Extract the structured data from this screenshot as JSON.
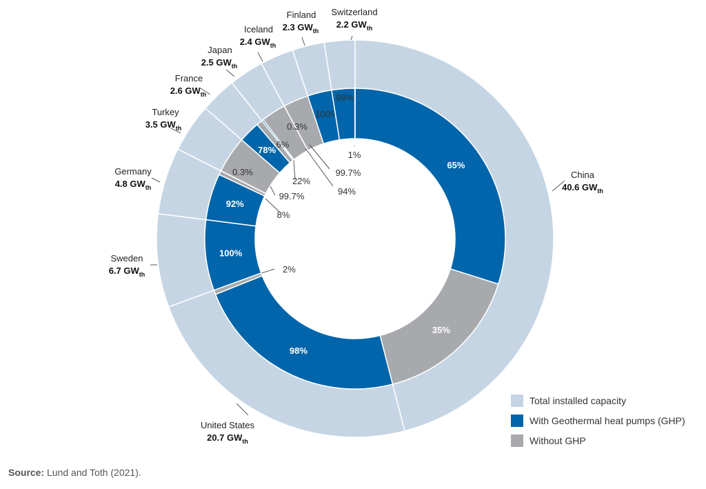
{
  "chart_data": {
    "type": "donut",
    "unit": "GW",
    "unit_subscript": "th",
    "total_series_name": "Total installed capacity",
    "countries": [
      {
        "name": "China",
        "value": "40.6",
        "capacity": 40.6,
        "with_ghp": 65,
        "without_ghp": 35,
        "with_label": "65%",
        "without_label": "35%"
      },
      {
        "name": "United States",
        "value": "20.7",
        "capacity": 20.7,
        "with_ghp": 98,
        "without_ghp": 2,
        "with_label": "98%",
        "without_label": "2%"
      },
      {
        "name": "Sweden",
        "value": "6.7",
        "capacity": 6.7,
        "with_ghp": 100,
        "without_ghp": 0,
        "with_label": "100%",
        "without_label": ""
      },
      {
        "name": "Germany",
        "value": "4.8",
        "capacity": 4.8,
        "with_ghp": 92,
        "without_ghp": 8,
        "with_label": "92%",
        "without_label": "8%"
      },
      {
        "name": "Turkey",
        "value": "3.5",
        "capacity": 3.5,
        "with_ghp": 0.3,
        "without_ghp": 99.7,
        "with_label": "0.3%",
        "without_label": "99.7%"
      },
      {
        "name": "France",
        "value": "2.6",
        "capacity": 2.6,
        "with_ghp": 78,
        "without_ghp": 22,
        "with_label": "78%",
        "without_label": "22%"
      },
      {
        "name": "Japan",
        "value": "2.5",
        "capacity": 2.5,
        "with_ghp": 6,
        "without_ghp": 94,
        "with_label": "6%",
        "without_label": "94%"
      },
      {
        "name": "Iceland",
        "value": "2.4",
        "capacity": 2.4,
        "with_ghp": 0.3,
        "without_ghp": 99.7,
        "with_label": "0.3%",
        "without_label": "99.7%"
      },
      {
        "name": "Finland",
        "value": "2.3",
        "capacity": 2.3,
        "with_ghp": 100,
        "without_ghp": 0,
        "with_label": "100%",
        "without_label": ""
      },
      {
        "name": "Switzerland",
        "value": "2.2",
        "capacity": 2.2,
        "with_ghp": 99,
        "without_ghp": 1,
        "with_label": "99%",
        "without_label": "1%"
      }
    ],
    "legend": {
      "placement": "bottom-right",
      "items": [
        {
          "label": "Total installed capacity",
          "color": "#c5d5e4"
        },
        {
          "label": "With Geothermal heat pumps (GHP)",
          "color": "#0065aa"
        },
        {
          "label": "Without GHP",
          "color": "#a7a9ac"
        }
      ]
    },
    "colors": {
      "outer": "#c5d5e4",
      "with": "#0065aa",
      "without": "#a7a9ac"
    }
  },
  "source": {
    "label": "Source:",
    "text": "Lund and Toth (2021)."
  }
}
